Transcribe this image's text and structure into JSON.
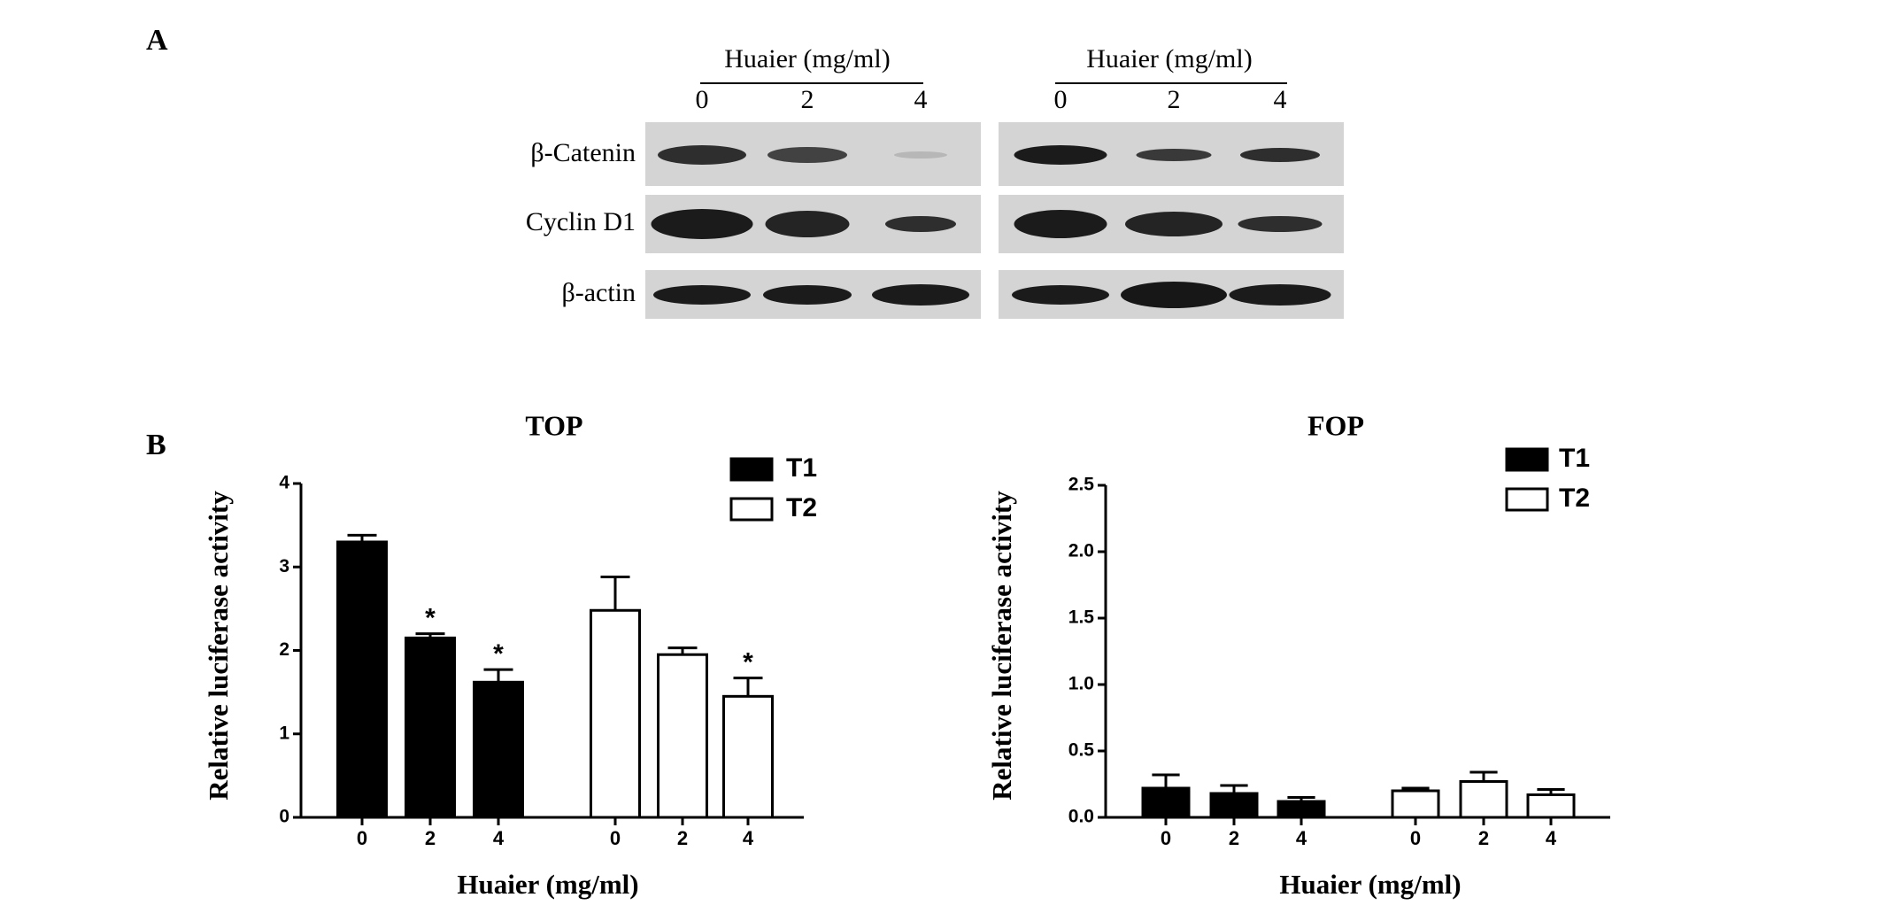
{
  "panel_labels": [
    "A",
    "B"
  ],
  "panel_a": {
    "blots": [
      {
        "header": "Huaier (mg/ml)",
        "lanes": [
          "0",
          "2",
          "4"
        ]
      },
      {
        "header": "Huaier (mg/ml)",
        "lanes": [
          "0",
          "2",
          "4"
        ]
      }
    ],
    "rows": [
      "β-Catenin",
      "Cyclin D1",
      "β-actin"
    ]
  },
  "chart_data": [
    {
      "type": "bar",
      "title": "TOP",
      "x_label": "Huaier (mg/ml)",
      "y_label": "Relative luciferase activity",
      "categories": [
        "0",
        "2",
        "4"
      ],
      "series": [
        {
          "name": "T1",
          "color": "#000000",
          "values": [
            3.3,
            2.15,
            1.62
          ],
          "errors": [
            0.08,
            0.05,
            0.15
          ],
          "significance": [
            null,
            "*",
            "*"
          ]
        },
        {
          "name": "T2",
          "color": "#ffffff",
          "values": [
            2.48,
            1.95,
            1.45
          ],
          "errors": [
            0.4,
            0.08,
            0.22
          ],
          "significance": [
            null,
            null,
            "*"
          ]
        }
      ],
      "ylim": [
        0,
        4
      ],
      "yticks": [
        0,
        1,
        2,
        3,
        4
      ]
    },
    {
      "type": "bar",
      "title": "FOP",
      "x_label": "Huaier (mg/ml)",
      "y_label": "Relative luciferase activity",
      "categories": [
        "0",
        "2",
        "4"
      ],
      "series": [
        {
          "name": "T1",
          "color": "#000000",
          "values": [
            0.22,
            0.18,
            0.12
          ],
          "errors": [
            0.1,
            0.06,
            0.03
          ]
        },
        {
          "name": "T2",
          "color": "#ffffff",
          "values": [
            0.2,
            0.27,
            0.17
          ],
          "errors": [
            0.02,
            0.07,
            0.04
          ]
        }
      ],
      "ylim": [
        0,
        2.5
      ],
      "yticks": [
        {
          "value": 0,
          "label": "0.0"
        },
        {
          "value": 0.5,
          "label": "0.5"
        },
        {
          "value": 1,
          "label": "1.0"
        },
        {
          "value": 1.5,
          "label": "1.5"
        },
        {
          "value": 2,
          "label": "2.0"
        },
        {
          "value": 2.5,
          "label": "2.5"
        }
      ]
    }
  ]
}
